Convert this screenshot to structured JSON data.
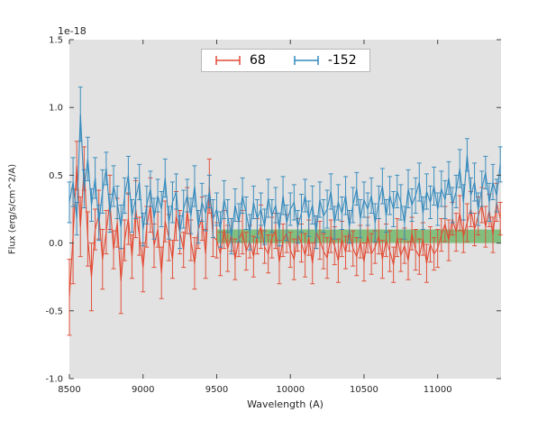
{
  "figure": {
    "offset_label": "1e-18",
    "background": "#ffffff"
  },
  "axes": {
    "xlabel": "Wavelength (A)",
    "ylabel": "Flux (erg/s/cm^2/A)"
  },
  "legend": {
    "position": "upper center",
    "entries": [
      {
        "label": "68",
        "color": "#E24A33"
      },
      {
        "label": "-152",
        "color": "#348ABD"
      }
    ]
  },
  "chart_data": {
    "type": "line",
    "subtype": "errorbar",
    "title": "",
    "xlabel": "Wavelength (A)",
    "ylabel": "Flux (erg/s/cm^2/A)",
    "offset_text": "1e-18",
    "legend_position": "upper center",
    "grid": false,
    "plot_bg": "#e2e2e2",
    "xlim": [
      8500,
      11430
    ],
    "ylim": [
      -1.0,
      1.5
    ],
    "x_tick_values": [
      8500,
      9000,
      9500,
      10000,
      10500,
      11000
    ],
    "x_tick_labels": [
      "8500",
      "9000",
      "9500",
      "10000",
      "10500",
      "11000"
    ],
    "y_tick_values": [
      -1.0,
      -0.5,
      0.0,
      0.5,
      1.0,
      1.5
    ],
    "y_tick_labels": [
      "-1.0",
      "-0.5",
      "0.0",
      "0.5",
      "1.0",
      "1.5"
    ],
    "x": {
      "start": 8500,
      "step": 25,
      "count": 118
    },
    "band": {
      "x_start": 9500,
      "x_end": 11430,
      "y_low": 0.0,
      "y_high": 0.1,
      "color": "#33a02c",
      "alpha": 0.55
    },
    "series": [
      {
        "name": "68",
        "color": "#E24A33",
        "y": [
          -0.4,
          0.05,
          0.57,
          0.12,
          0.55,
          0.03,
          -0.25,
          0.1,
          0.21,
          -0.12,
          0.08,
          0.3,
          -0.05,
          0.15,
          -0.28,
          0.02,
          0.18,
          -0.1,
          0.25,
          0.05,
          -0.18,
          0.12,
          0.28,
          -0.02,
          0.1,
          -0.22,
          0.16,
          0.04,
          -0.12,
          0.2,
          0.08,
          -0.05,
          0.24,
          0.02,
          -0.15,
          0.1,
          0.18,
          -0.08,
          0.42,
          0.05,
          0.02,
          -0.08,
          0.1,
          -0.04,
          0.06,
          -0.12,
          0.03,
          0.08,
          -0.06,
          0.01,
          -0.1,
          0.05,
          0.12,
          -0.03,
          -0.08,
          0.04,
          0.09,
          -0.14,
          0.02,
          0.07,
          -0.05,
          -0.12,
          0.06,
          0.0,
          -0.09,
          0.04,
          -0.15,
          0.08,
          0.02,
          -0.06,
          -0.11,
          0.05,
          -0.02,
          -0.13,
          0.03,
          -0.07,
          0.09,
          -0.04,
          -0.1,
          0.01,
          -0.14,
          0.06,
          -0.08,
          -0.03,
          0.05,
          -0.12,
          0.02,
          -0.06,
          -0.16,
          0.04,
          -0.09,
          -0.02,
          -0.13,
          0.07,
          -0.05,
          -0.1,
          0.03,
          -0.15,
          -0.01,
          -0.08,
          -0.04,
          0.06,
          0.14,
          0.02,
          0.18,
          0.08,
          0.22,
          0.05,
          0.15,
          0.25,
          0.1,
          0.2,
          0.28,
          0.12,
          0.24,
          0.06,
          0.3,
          0.18
        ],
        "yerr": [
          0.28,
          0.35,
          0.18,
          0.22,
          0.16,
          0.2,
          0.25,
          0.15,
          0.18,
          0.22,
          0.16,
          0.2,
          0.14,
          0.18,
          0.24,
          0.15,
          0.19,
          0.16,
          0.21,
          0.14,
          0.18,
          0.15,
          0.2,
          0.16,
          0.13,
          0.19,
          0.15,
          0.17,
          0.14,
          0.18,
          0.16,
          0.13,
          0.17,
          0.15,
          0.19,
          0.14,
          0.16,
          0.18,
          0.2,
          0.15,
          0.13,
          0.16,
          0.14,
          0.17,
          0.12,
          0.15,
          0.13,
          0.16,
          0.14,
          0.12,
          0.15,
          0.13,
          0.16,
          0.12,
          0.14,
          0.15,
          0.13,
          0.16,
          0.12,
          0.14,
          0.13,
          0.15,
          0.12,
          0.14,
          0.16,
          0.13,
          0.15,
          0.12,
          0.14,
          0.13,
          0.15,
          0.12,
          0.14,
          0.16,
          0.13,
          0.12,
          0.15,
          0.13,
          0.14,
          0.12,
          0.14,
          0.13,
          0.15,
          0.12,
          0.13,
          0.14,
          0.12,
          0.15,
          0.13,
          0.14,
          0.12,
          0.13,
          0.14,
          0.12,
          0.15,
          0.13,
          0.12,
          0.14,
          0.13,
          0.12,
          0.14,
          0.12,
          0.13,
          0.15,
          0.12,
          0.14,
          0.13,
          0.12,
          0.14,
          0.13,
          0.12,
          0.14,
          0.13,
          0.15,
          0.12,
          0.13,
          0.14,
          0.12
        ]
      },
      {
        "name": "-152",
        "color": "#348ABD",
        "y": [
          0.3,
          0.45,
          0.18,
          0.95,
          0.4,
          0.62,
          0.28,
          0.48,
          0.15,
          0.38,
          0.55,
          0.22,
          0.42,
          0.3,
          0.12,
          0.35,
          0.5,
          0.2,
          0.33,
          0.45,
          0.1,
          0.28,
          0.4,
          0.18,
          0.35,
          0.25,
          0.48,
          0.15,
          0.3,
          0.38,
          0.08,
          0.25,
          0.35,
          0.2,
          0.42,
          0.12,
          0.3,
          0.22,
          0.38,
          0.18,
          0.25,
          0.1,
          0.32,
          0.2,
          0.05,
          0.28,
          0.15,
          0.35,
          0.22,
          0.08,
          0.3,
          0.18,
          0.25,
          0.12,
          0.33,
          0.2,
          0.28,
          0.1,
          0.35,
          0.15,
          0.25,
          0.3,
          0.12,
          0.22,
          0.35,
          0.18,
          0.28,
          0.08,
          0.32,
          0.2,
          0.25,
          0.38,
          0.15,
          0.3,
          0.22,
          0.35,
          0.12,
          0.28,
          0.4,
          0.18,
          0.32,
          0.25,
          0.35,
          0.15,
          0.3,
          0.42,
          0.2,
          0.35,
          0.25,
          0.38,
          0.3,
          0.15,
          0.4,
          0.28,
          0.35,
          0.45,
          0.22,
          0.38,
          0.3,
          0.42,
          0.25,
          0.4,
          0.32,
          0.48,
          0.28,
          0.38,
          0.55,
          0.3,
          0.65,
          0.35,
          0.45,
          0.25,
          0.4,
          0.52,
          0.3,
          0.45,
          0.35,
          0.58
        ],
        "yerr": [
          0.15,
          0.18,
          0.12,
          0.2,
          0.14,
          0.16,
          0.12,
          0.15,
          0.13,
          0.16,
          0.12,
          0.14,
          0.15,
          0.12,
          0.16,
          0.13,
          0.14,
          0.12,
          0.15,
          0.13,
          0.12,
          0.14,
          0.13,
          0.15,
          0.12,
          0.13,
          0.14,
          0.12,
          0.15,
          0.13,
          0.12,
          0.14,
          0.12,
          0.13,
          0.15,
          0.12,
          0.14,
          0.13,
          0.12,
          0.14,
          0.12,
          0.13,
          0.14,
          0.12,
          0.13,
          0.12,
          0.14,
          0.13,
          0.12,
          0.13,
          0.12,
          0.14,
          0.12,
          0.13,
          0.14,
          0.12,
          0.13,
          0.12,
          0.14,
          0.13,
          0.12,
          0.13,
          0.12,
          0.14,
          0.12,
          0.13,
          0.14,
          0.12,
          0.13,
          0.12,
          0.14,
          0.13,
          0.12,
          0.13,
          0.12,
          0.14,
          0.12,
          0.13,
          0.12,
          0.14,
          0.13,
          0.12,
          0.13,
          0.14,
          0.12,
          0.13,
          0.12,
          0.14,
          0.13,
          0.12,
          0.13,
          0.12,
          0.14,
          0.12,
          0.13,
          0.14,
          0.12,
          0.13,
          0.12,
          0.14,
          0.12,
          0.13,
          0.14,
          0.12,
          0.13,
          0.12,
          0.14,
          0.13,
          0.12,
          0.13,
          0.14,
          0.12,
          0.13,
          0.12,
          0.14,
          0.13,
          0.12,
          0.13
        ]
      }
    ]
  }
}
